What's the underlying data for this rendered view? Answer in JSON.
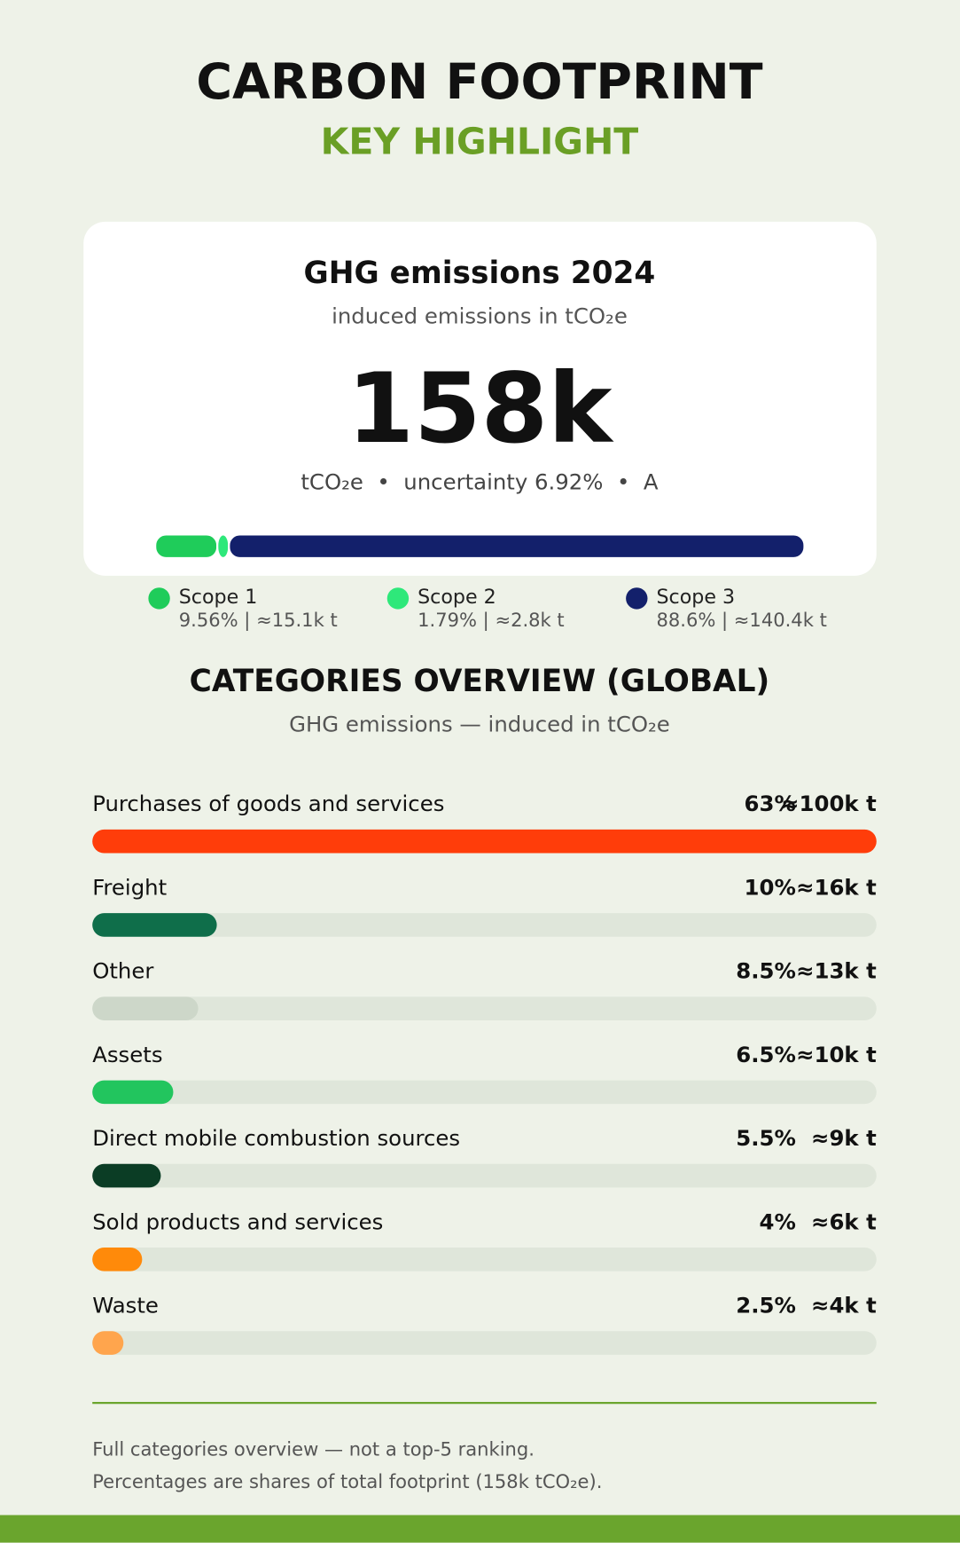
{
  "header": {
    "title": "CARBON FOOTPRINT",
    "subtitle": "KEY HIGHLIGHT"
  },
  "summary": {
    "title": "GHG emissions 2024",
    "subtitle": "induced emissions in tCO₂e",
    "value": "158k",
    "details": "tCO₂e  •  uncertainty 6.92%  •  A"
  },
  "chart_data": [
    {
      "type": "stacked_bar",
      "xlim": [
        0,
        100
      ],
      "series": [
        {
          "name": "Scope 1",
          "color": "#1fcc5a",
          "values": [
            9.56
          ],
          "value_labels": [
            "9.56% | ≈15.1k t"
          ]
        },
        {
          "name": "Scope 2",
          "color": "#2ee87a",
          "values": [
            1.79
          ],
          "value_labels": [
            "1.79% | ≈2.8k t"
          ]
        },
        {
          "name": "Scope 3",
          "color": "#13206b",
          "values": [
            88.6
          ],
          "value_labels": [
            "88.6% | ≈140.4k t"
          ]
        }
      ]
    },
    {
      "type": "bar",
      "title": "CATEGORIES OVERVIEW (GLOBAL)",
      "subtitle": "GHG emissions — induced in tCO₂e",
      "categories": [
        "Purchases of goods and services",
        "Freight",
        "Other",
        "Assets",
        "Direct mobile combustion sources",
        "Sold products and services",
        "Waste"
      ],
      "values": [
        63,
        10,
        8.5,
        6.5,
        5.5,
        4,
        2.5
      ],
      "value_labels": [
        "63%",
        "10%",
        "8.5%",
        "6.5%",
        "5.5%",
        "4%",
        "2.5%"
      ],
      "amount_labels": [
        "≈100k t",
        "≈16k t",
        "≈13k t",
        "≈10k t",
        "≈9k t",
        "≈6k t",
        "≈4k t"
      ],
      "colors": [
        "#ff3d0a",
        "#0f6e4a",
        "#cdd7c9",
        "#22c55e",
        "#0b3d25",
        "#ff8a0a",
        "#ffa54d"
      ],
      "track_color": "#dfe6da",
      "xlim": [
        0,
        63
      ]
    }
  ],
  "footer": {
    "notes": [
      "Full categories overview — not a top-5 ranking.",
      "Percentages are shares of total footprint (158k tCO₂e)."
    ]
  }
}
